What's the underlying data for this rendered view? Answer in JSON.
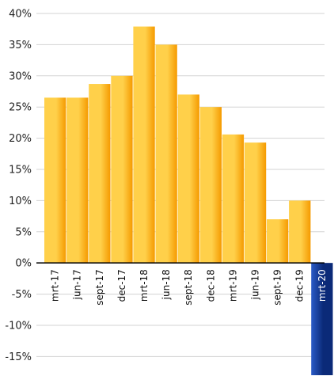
{
  "chart_data": {
    "type": "bar",
    "title": "",
    "xlabel": "",
    "ylabel": "",
    "categories": [
      "mrt-17",
      "jun-17",
      "sept-17",
      "dec-17",
      "mrt-18",
      "jun-18",
      "sept-18",
      "dec-18",
      "mrt-19",
      "jun-19",
      "sept-19",
      "dec-19",
      "mrt-20"
    ],
    "values": [
      26.5,
      26.5,
      28.7,
      30.0,
      37.9,
      35.0,
      27.0,
      25.0,
      20.6,
      19.3,
      7.0,
      10.0,
      -18.0
    ],
    "ylim": [
      -18,
      40
    ],
    "yticks": [
      40,
      35,
      30,
      25,
      20,
      15,
      10,
      5,
      0,
      -5,
      -10,
      -15
    ],
    "ytick_labels": [
      "40%",
      "35%",
      "30%",
      "25%",
      "20%",
      "15%",
      "10%",
      "5%",
      "0%",
      "-5%",
      "-10%",
      "-15%"
    ],
    "grid": true,
    "legend": "none",
    "colors": {
      "positive_light": "#ffd04a",
      "positive_dark": "#f59a00",
      "negative_light": "#2a5bc8",
      "negative_dark": "#0b2a78",
      "grid": "#d3d3d3",
      "axis": "#000000"
    }
  }
}
